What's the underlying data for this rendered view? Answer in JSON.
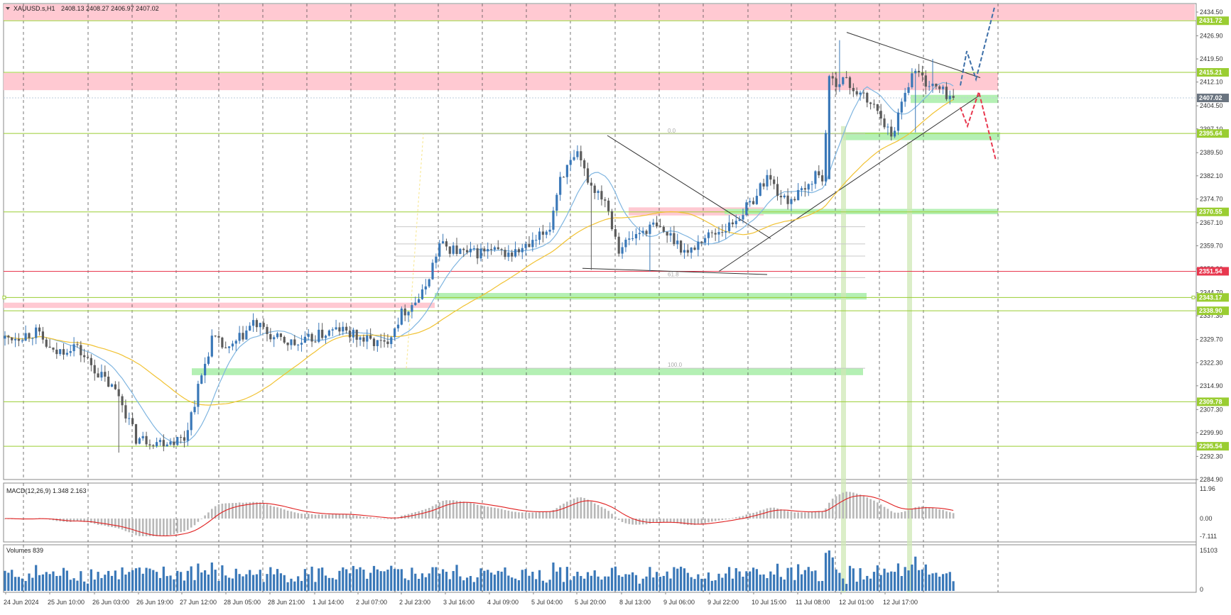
{
  "header": {
    "symbol_label": "XAUUSD.s,H1",
    "ohlc": "2408.13 2408.27 2406.97 2407.02"
  },
  "macd": {
    "label": "MACD(12,26,9) 1.348 2.163"
  },
  "volumes": {
    "label": "Volumes 839"
  },
  "colors": {
    "bull": "#3a78b8",
    "bear": "#5b5b5b",
    "ma_fast": "#7fb5e0",
    "ma_slow": "#f1c232",
    "resistance_zone": "#ffc9d2",
    "support_zone": "#b4f0b4",
    "level_line": "#9acd32",
    "red_line": "#e8384f",
    "forecast_up": "#3d6fa8",
    "forecast_down": "#e8384f",
    "macd_signal": "#e02020",
    "grid": "#4a4a4a"
  },
  "chart_data": [
    {
      "type": "candlestick",
      "title": "XAUUSD.s,H1",
      "ylim": [
        2284.9,
        2438.0
      ],
      "x_tick_labels": [
        "24 Jun 2024",
        "25 Jun 10:00",
        "26 Jun 03:00",
        "26 Jun 19:00",
        "27 Jun 12:00",
        "28 Jun 05:00",
        "28 Jun 21:00",
        "1 Jul 14:00",
        "2 Jul 07:00",
        "2 Jul 23:00",
        "3 Jul 16:00",
        "4 Jul 09:00",
        "5 Jul 04:00",
        "5 Jul 20:00",
        "8 Jul 13:00",
        "9 Jul 06:00",
        "9 Jul 22:00",
        "10 Jul 15:00",
        "11 Jul 08:00",
        "12 Jul 01:00",
        "12 Jul 17:00"
      ],
      "y_tick_labels": [
        "2434.50",
        "2426.90",
        "2419.50",
        "2412.10",
        "2404.50",
        "2397.10",
        "2389.50",
        "2382.10",
        "2374.70",
        "2367.10",
        "2359.70",
        "2352.30",
        "2344.70",
        "2337.30",
        "2329.70",
        "2322.30",
        "2314.90",
        "2307.30",
        "2299.90",
        "2292.30",
        "2284.90"
      ],
      "y_ticks": [
        2434.5,
        2426.9,
        2419.5,
        2412.1,
        2404.5,
        2397.1,
        2389.5,
        2382.1,
        2374.7,
        2367.1,
        2359.7,
        2352.3,
        2344.7,
        2337.3,
        2329.7,
        2322.3,
        2314.9,
        2307.3,
        2299.9,
        2292.3,
        2284.9
      ],
      "price_levels": [
        {
          "value": 2431.72,
          "label": "2431.72",
          "kind": "green"
        },
        {
          "value": 2415.21,
          "label": "2415.21",
          "kind": "green"
        },
        {
          "value": 2395.64,
          "label": "2395.64",
          "kind": "green"
        },
        {
          "value": 2370.55,
          "label": "2370.55",
          "kind": "green"
        },
        {
          "value": 2351.54,
          "label": "2351.54",
          "kind": "red"
        },
        {
          "value": 2343.17,
          "label": "2343.17",
          "kind": "green"
        },
        {
          "value": 2338.9,
          "label": "2338.90",
          "kind": "green"
        },
        {
          "value": 2309.78,
          "label": "2309.78",
          "kind": "green"
        },
        {
          "value": 2295.54,
          "label": "2295.54",
          "kind": "green"
        }
      ],
      "current_price": {
        "value": 2407.02,
        "label": "2407.02"
      },
      "fibonacci_labels": [
        "0.0",
        "61.8",
        "100.0"
      ],
      "close_path": [
        [
          0,
          2330
        ],
        [
          9,
          2332
        ],
        [
          14,
          2325
        ],
        [
          20,
          2328
        ],
        [
          27,
          2319
        ],
        [
          33,
          2312
        ],
        [
          38,
          2298
        ],
        [
          45,
          2297
        ],
        [
          52,
          2298
        ],
        [
          55,
          2310
        ],
        [
          60,
          2330
        ],
        [
          65,
          2326
        ],
        [
          72,
          2335
        ],
        [
          78,
          2330
        ],
        [
          85,
          2328
        ],
        [
          91,
          2331
        ],
        [
          97,
          2333
        ],
        [
          103,
          2330
        ],
        [
          110,
          2328
        ],
        [
          115,
          2338
        ],
        [
          121,
          2344
        ],
        [
          126,
          2360
        ],
        [
          134,
          2357
        ],
        [
          140,
          2358
        ],
        [
          147,
          2357
        ],
        [
          153,
          2360
        ],
        [
          158,
          2366
        ],
        [
          161,
          2382
        ],
        [
          166,
          2388
        ],
        [
          170,
          2379
        ],
        [
          174,
          2375
        ],
        [
          178,
          2359
        ],
        [
          184,
          2364
        ],
        [
          188,
          2366
        ],
        [
          194,
          2362
        ],
        [
          198,
          2357
        ],
        [
          202,
          2362
        ],
        [
          210,
          2366
        ],
        [
          216,
          2373
        ],
        [
          221,
          2382
        ],
        [
          226,
          2374
        ],
        [
          232,
          2377
        ],
        [
          235,
          2383
        ],
        [
          237,
          2381
        ],
        [
          239,
          2412
        ],
        [
          243,
          2413
        ],
        [
          249,
          2407
        ],
        [
          254,
          2402
        ],
        [
          257,
          2394
        ],
        [
          261,
          2410
        ],
        [
          264,
          2416
        ],
        [
          267,
          2412
        ],
        [
          272,
          2409
        ],
        [
          275,
          2407
        ]
      ],
      "volume_range": [
        0,
        15103
      ],
      "macd_range": [
        -7.111,
        11.96
      ],
      "macd_ticks": [
        "11.96",
        "0.00",
        "-7.111"
      ],
      "volume_ticks": [
        "15103",
        "0"
      ]
    }
  ]
}
